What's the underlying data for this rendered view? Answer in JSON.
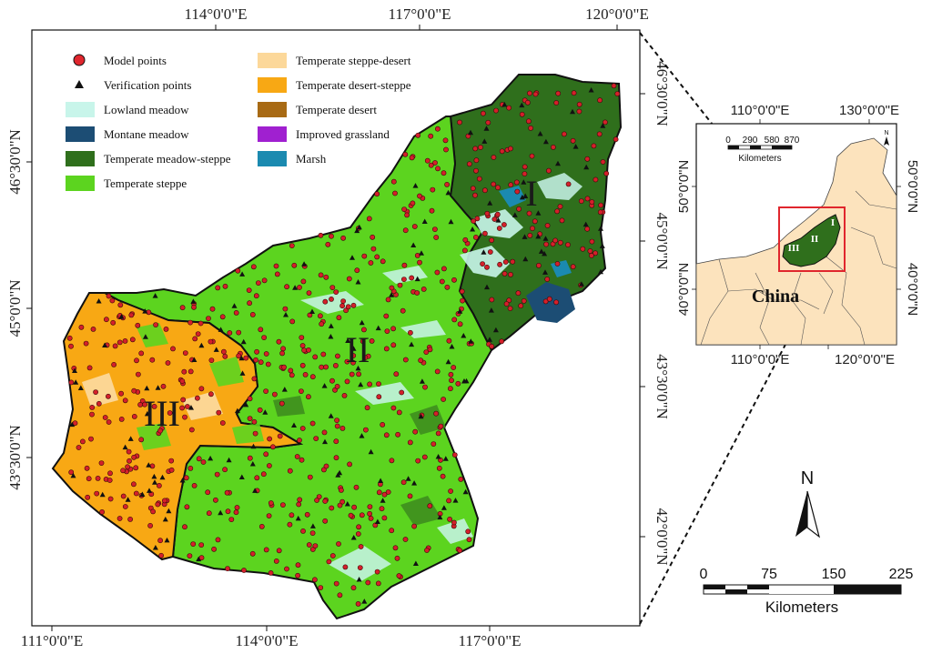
{
  "main_map": {
    "top_lon_labels": [
      "114°0'0\"E",
      "117°0'0\"E",
      "120°0'0\"E"
    ],
    "bottom_lon_labels": [
      "111°0'0\"E",
      "114°0'0\"E",
      "117°0'0\"E"
    ],
    "left_lat_labels": [
      "46°30'0\"N",
      "45°0'0\"N",
      "43°30'0\"N"
    ],
    "right_lat_labels": [
      "46°30'0\"N",
      "45°0'0\"N",
      "43°30'0\"N",
      "42°0'0\"N"
    ],
    "region_labels": [
      "I",
      "II",
      "III"
    ]
  },
  "legend": {
    "left": [
      {
        "label": "Model points",
        "symbol": "circle",
        "color": "#e0262d"
      },
      {
        "label": "Verification points",
        "symbol": "triangle",
        "color": "#111111"
      },
      {
        "label": "Lowland meadow",
        "symbol": "patch",
        "color": "#c8f5ea"
      },
      {
        "label": "Montane meadow",
        "symbol": "patch",
        "color": "#1c4d74"
      },
      {
        "label": "Temperate meadow-steppe",
        "symbol": "patch",
        "color": "#2f6f1c"
      },
      {
        "label": "Temperate steppe",
        "symbol": "patch",
        "color": "#5cd41f"
      }
    ],
    "right": [
      {
        "label": "Temperate steppe-desert",
        "symbol": "patch",
        "color": "#fcd89a"
      },
      {
        "label": "Temperate desert-steppe",
        "symbol": "patch",
        "color": "#f8a814"
      },
      {
        "label": "Temperate desert",
        "symbol": "patch",
        "color": "#a86a14"
      },
      {
        "label": "Improved grassland",
        "symbol": "patch",
        "color": "#a020d0"
      },
      {
        "label": "Marsh",
        "symbol": "patch",
        "color": "#1b8ab0"
      }
    ]
  },
  "inset": {
    "top_lon_labels": [
      "110°0'0\"E",
      "130°0'0\"E"
    ],
    "bottom_lon_labels": [
      "110°0'0\"E",
      "120°0'0\"E"
    ],
    "left_lat_labels": [
      "50°0'0\"N",
      "40°0'0\"N"
    ],
    "right_lat_labels": [
      "50°0'0\"N",
      "40°0'0\"N"
    ],
    "scale_ticks": [
      "0",
      "290",
      "580",
      "870"
    ],
    "scale_unit": "Kilometers",
    "country_label": "China",
    "north_label": "N",
    "region_labels": [
      "I",
      "II",
      "III"
    ]
  },
  "north_arrow": {
    "label": "N"
  },
  "scale_bar": {
    "ticks": [
      "0",
      "75",
      "150",
      "225"
    ],
    "unit": "Kilometers"
  }
}
